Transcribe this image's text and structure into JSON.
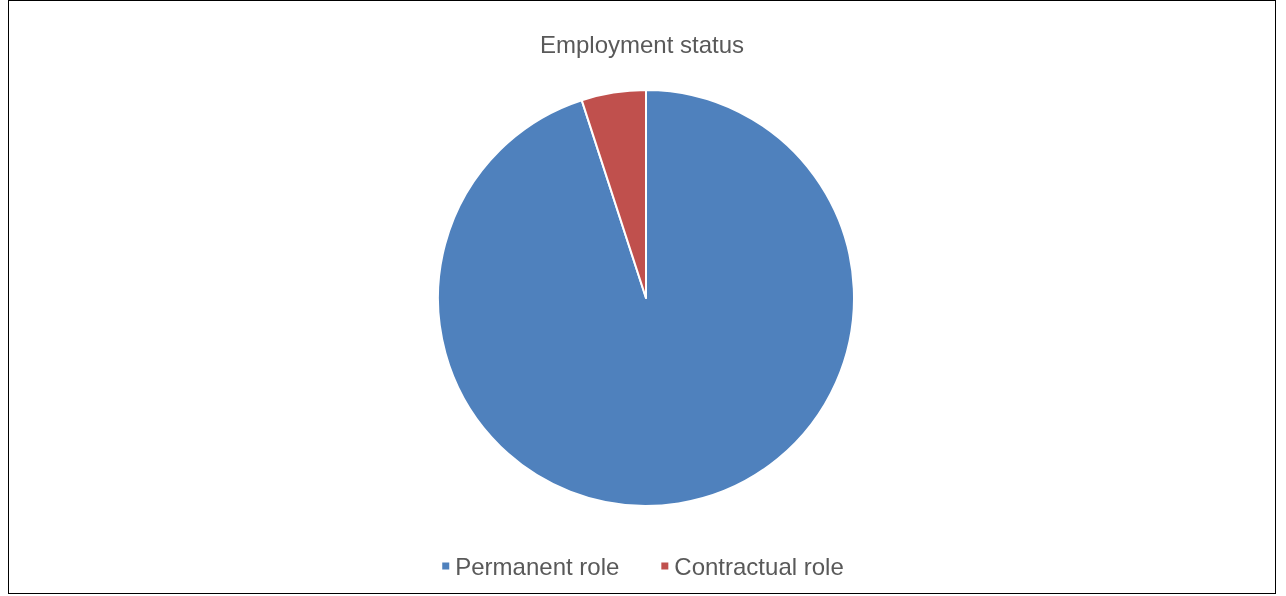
{
  "chart_data": {
    "type": "pie",
    "title": "Employment status",
    "categories": [
      "Permanent role",
      "Contractual role"
    ],
    "values": [
      95,
      5
    ],
    "colors": [
      "#4f81bd",
      "#c0504d"
    ],
    "legend": "bottom"
  }
}
